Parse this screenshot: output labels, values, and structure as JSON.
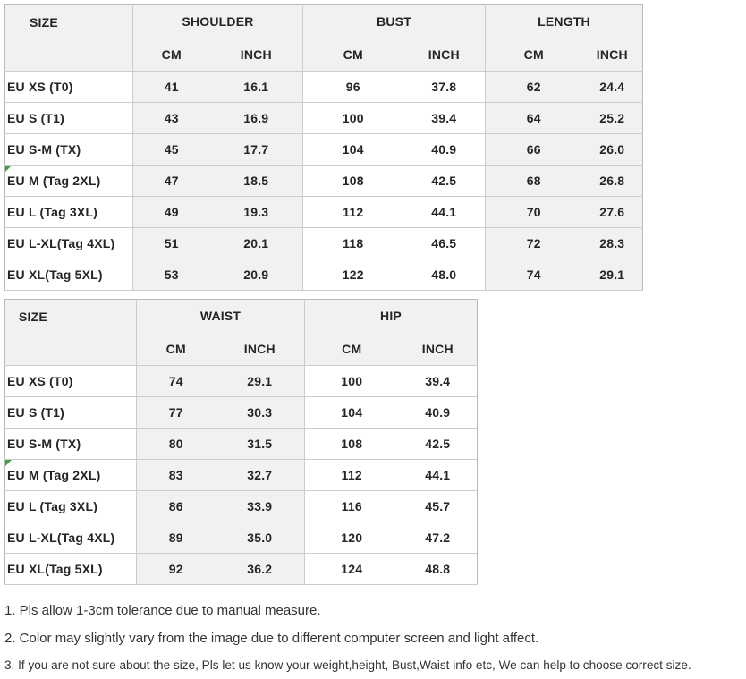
{
  "tables": [
    {
      "size_header": "SIZE",
      "groups": [
        {
          "label": "SHOULDER",
          "units": [
            "CM",
            "INCH"
          ]
        },
        {
          "label": "BUST",
          "units": [
            "CM",
            "INCH"
          ]
        },
        {
          "label": "LENGTH",
          "units": [
            "CM",
            "INCH"
          ]
        }
      ],
      "rows": [
        {
          "size": "EU XS (T0)",
          "marker": false,
          "values": [
            "41",
            "16.1",
            "96",
            "37.8",
            "62",
            "24.4"
          ]
        },
        {
          "size": "EU S (T1)",
          "marker": false,
          "values": [
            "43",
            "16.9",
            "100",
            "39.4",
            "64",
            "25.2"
          ]
        },
        {
          "size": "EU S-M (TX)",
          "marker": false,
          "values": [
            "45",
            "17.7",
            "104",
            "40.9",
            "66",
            "26.0"
          ]
        },
        {
          "size": "EU M (Tag 2XL)",
          "marker": true,
          "values": [
            "47",
            "18.5",
            "108",
            "42.5",
            "68",
            "26.8"
          ]
        },
        {
          "size": "EU L (Tag 3XL)",
          "marker": false,
          "values": [
            "49",
            "19.3",
            "112",
            "44.1",
            "70",
            "27.6"
          ]
        },
        {
          "size": "EU L-XL(Tag 4XL)",
          "marker": false,
          "values": [
            "51",
            "20.1",
            "118",
            "46.5",
            "72",
            "28.3"
          ]
        },
        {
          "size": "EU XL(Tag 5XL)",
          "marker": false,
          "values": [
            "53",
            "20.9",
            "122",
            "48.0",
            "74",
            "29.1"
          ]
        }
      ]
    },
    {
      "size_header": "SIZE",
      "groups": [
        {
          "label": "WAIST",
          "units": [
            "CM",
            "INCH"
          ]
        },
        {
          "label": "HIP",
          "units": [
            "CM",
            "INCH"
          ]
        }
      ],
      "rows": [
        {
          "size": "EU XS (T0)",
          "marker": false,
          "values": [
            "74",
            "29.1",
            "100",
            "39.4"
          ]
        },
        {
          "size": "EU S (T1)",
          "marker": false,
          "values": [
            "77",
            "30.3",
            "104",
            "40.9"
          ]
        },
        {
          "size": "EU S-M (TX)",
          "marker": false,
          "values": [
            "80",
            "31.5",
            "108",
            "42.5"
          ]
        },
        {
          "size": "EU M (Tag 2XL)",
          "marker": true,
          "values": [
            "83",
            "32.7",
            "112",
            "44.1"
          ]
        },
        {
          "size": "EU L (Tag 3XL)",
          "marker": false,
          "values": [
            "86",
            "33.9",
            "116",
            "45.7"
          ]
        },
        {
          "size": "EU L-XL(Tag 4XL)",
          "marker": false,
          "values": [
            "89",
            "35.0",
            "120",
            "47.2"
          ]
        },
        {
          "size": "EU XL(Tag 5XL)",
          "marker": false,
          "values": [
            "92",
            "36.2",
            "124",
            "48.8"
          ]
        }
      ]
    }
  ],
  "notes": [
    "1. Pls allow 1-3cm tolerance due to manual measure.",
    "2. Color may slightly vary from the image due to different computer screen and light affect.",
    "3. If you are not sure about the size, Pls let us know your weight,height, Bust,Waist info etc, We can help to choose correct size."
  ],
  "colors": {
    "header_bg": "#f1f1f1",
    "row_shade": "#f1f1f1",
    "table_border": "#b9b9b9",
    "grid_line": "#cccccc",
    "marker_green": "#3aa23a",
    "text": "#252525",
    "note_text": "#333333"
  }
}
